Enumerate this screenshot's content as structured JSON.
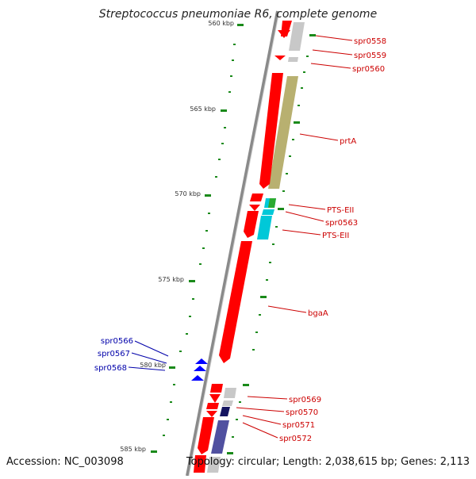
{
  "title": "Streptococcus pneumoniae R6, complete genome",
  "footer": {
    "accession": "Accession: NC_003098",
    "summary": "Topology: circular; Length: 2,038,615 bp; Genes: 2,113"
  },
  "axis": {
    "ticks": [
      {
        "label": "560 kbp"
      },
      {
        "label": "565 kbp"
      },
      {
        "label": "570 kbp"
      },
      {
        "label": "575 kbp"
      },
      {
        "label": "580 kbp"
      },
      {
        "label": "585 kbp"
      }
    ]
  },
  "genes_right": [
    {
      "label": "spr0558"
    },
    {
      "label": "spr0559"
    },
    {
      "label": "spr0560"
    },
    {
      "label": "prtA"
    },
    {
      "label": "PTS-EII"
    },
    {
      "label": "spr0563"
    },
    {
      "label": "PTS-EII"
    },
    {
      "label": "bgaA"
    },
    {
      "label": "spr0569"
    },
    {
      "label": "spr0570"
    },
    {
      "label": "spr0571"
    },
    {
      "label": "spr0572"
    }
  ],
  "genes_left": [
    {
      "label": "spr0566"
    },
    {
      "label": "spr0567"
    },
    {
      "label": "spr0568"
    }
  ],
  "colors": {
    "forward_gene": "#ff0000",
    "reverse_gene": "#0000ff",
    "right_label": "#cc0000",
    "left_label": "#0000aa",
    "backbone": "#8a8a8a",
    "gc_marks": "#1a8a1a",
    "olive_feature": "#b8b070",
    "cyan_feature": "#00c8d8",
    "navy_feature": "#5050a0"
  }
}
